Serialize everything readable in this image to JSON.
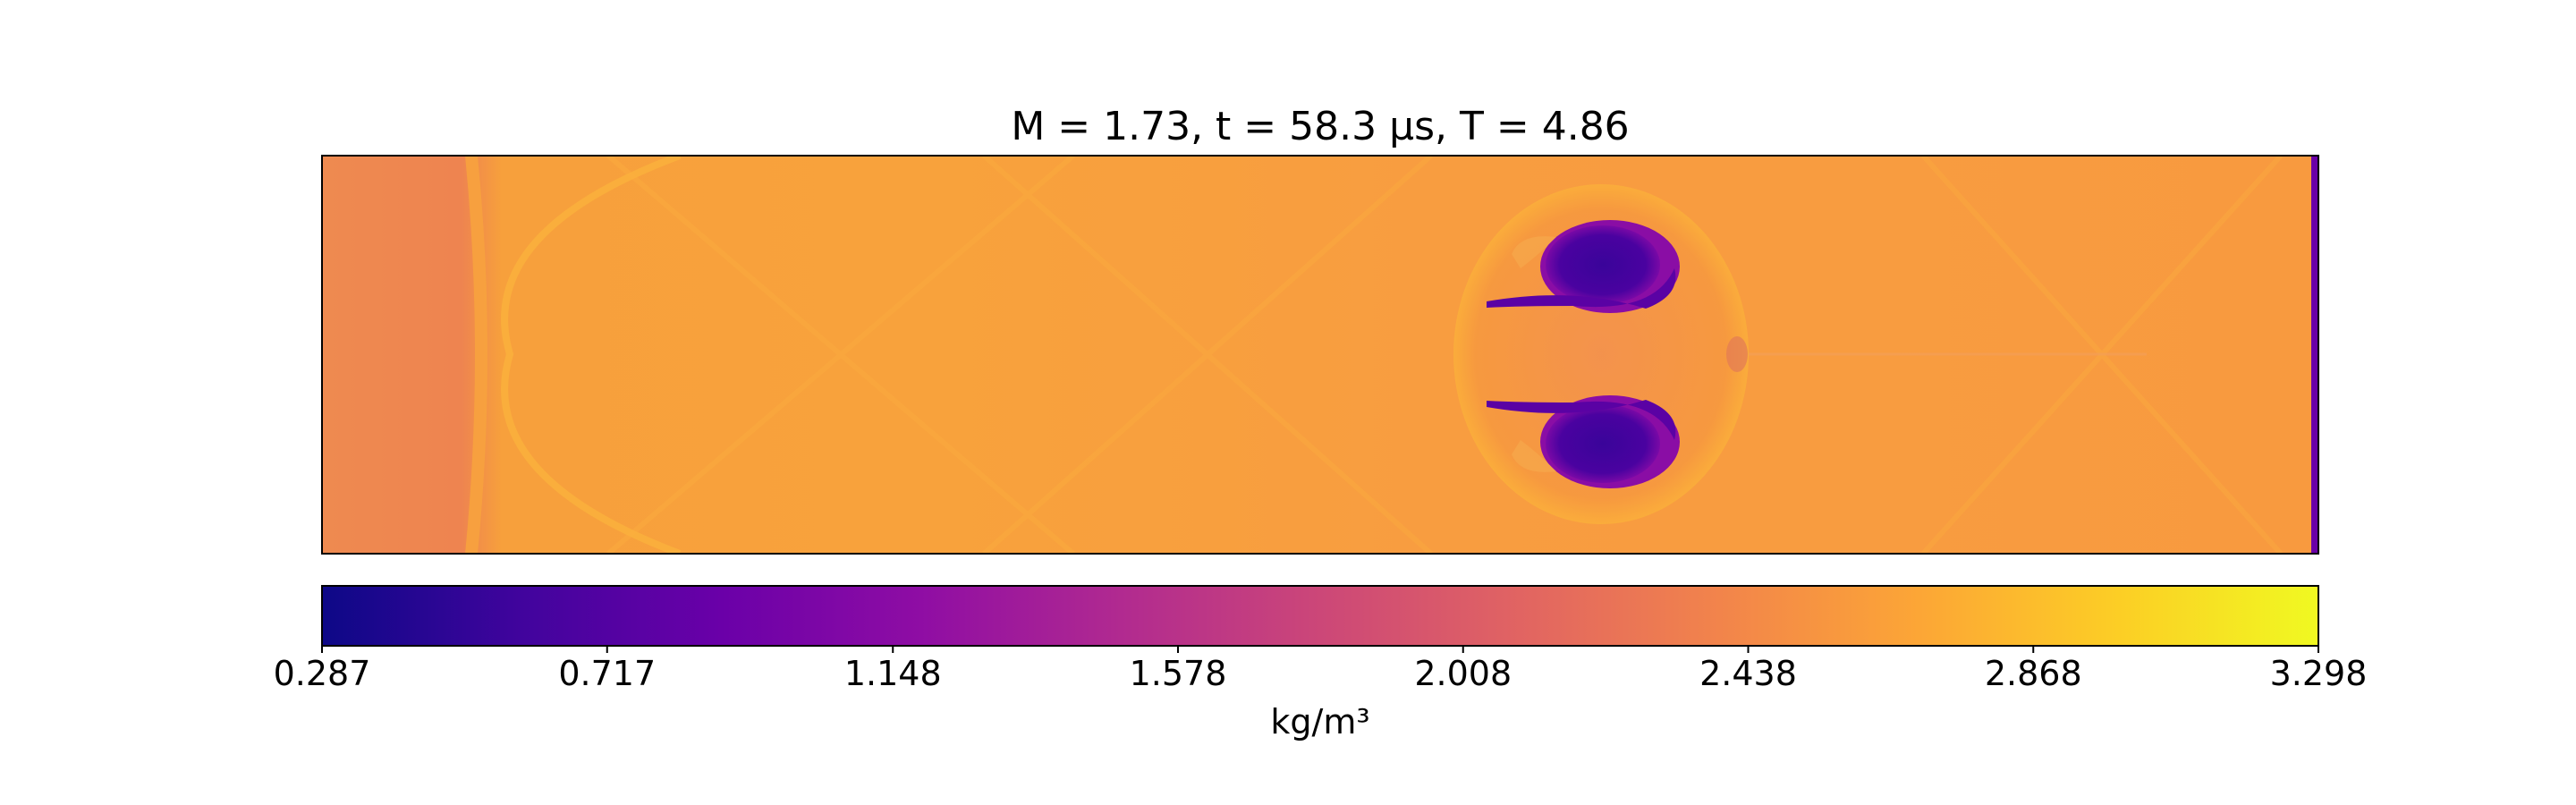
{
  "chart_data": {
    "type": "heatmap",
    "title": "M = 1.73, t = 58.3 μs, T = 4.86",
    "colormap": "plasma",
    "grid": false,
    "colorbar": {
      "orientation": "horizontal",
      "placement": "bottom",
      "range": [
        0.287,
        3.298
      ],
      "ticks": [
        0.287,
        0.717,
        1.148,
        1.578,
        2.008,
        2.438,
        2.868,
        3.298
      ],
      "tick_labels": [
        "0.287",
        "0.717",
        "1.148",
        "1.578",
        "2.008",
        "2.438",
        "2.868",
        "3.298"
      ],
      "label": "kg/m³"
    },
    "colors": {
      "background_field": "#f99a3e",
      "vortex_core": "#3e049c",
      "boundary_strip": "#6a00a8"
    }
  }
}
